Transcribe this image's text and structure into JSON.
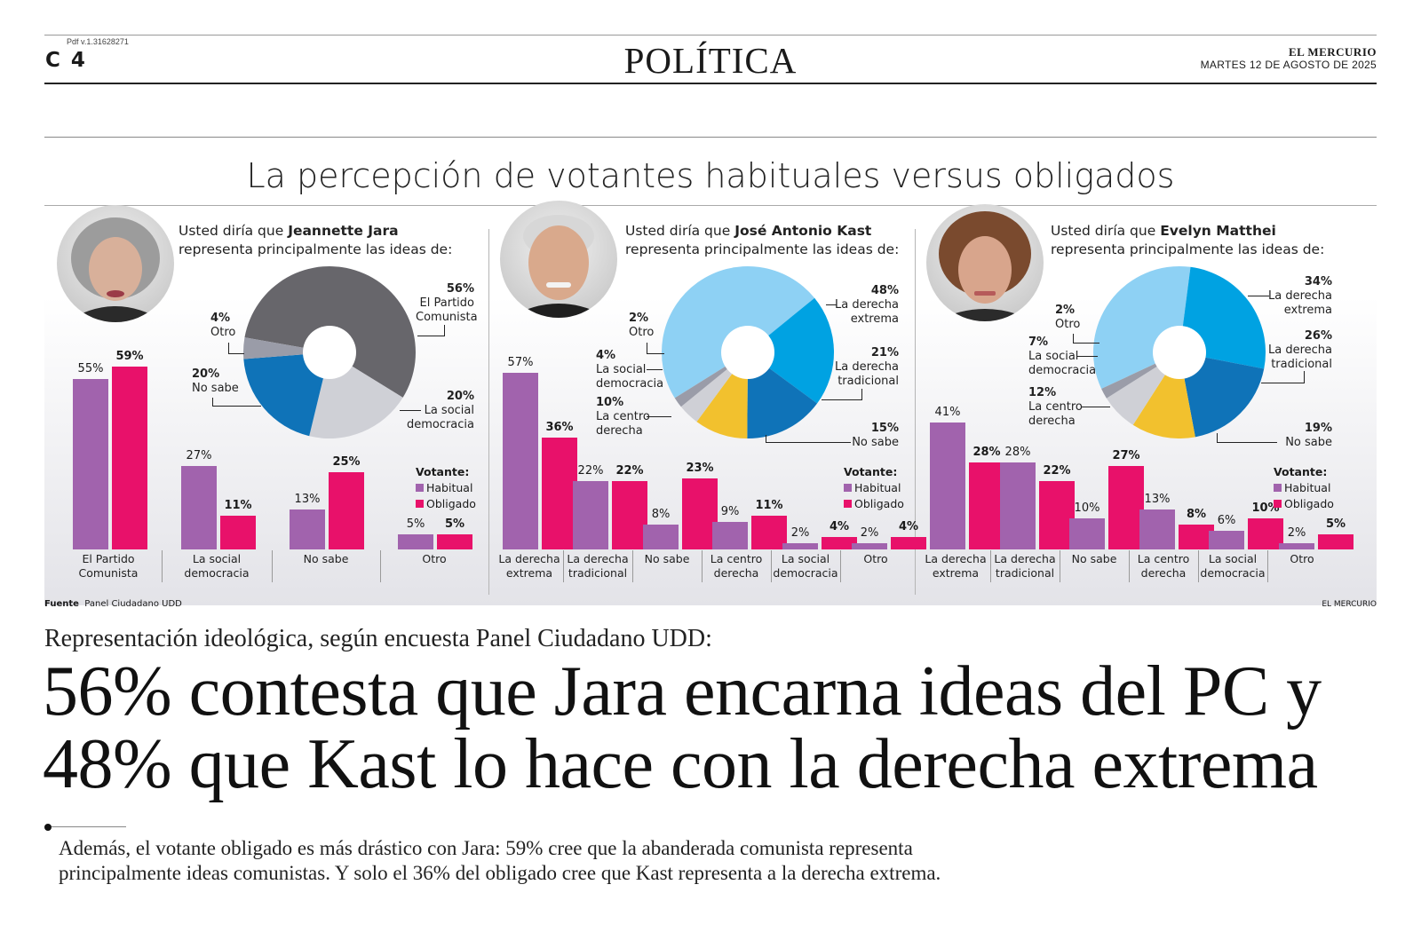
{
  "header": {
    "pdf_version": "Pdf v.1.31628271",
    "page": "C 4",
    "section": "POLÍTICA",
    "paper": "EL MERCURIO",
    "date": "MARTES 12 DE AGOSTO DE 2025"
  },
  "graphic": {
    "title": "La percepción de votantes habituales versus obligados",
    "source_label": "Fuente",
    "source": "Panel Ciudadano UDD",
    "credit": "EL MERCURIO",
    "legend": {
      "title": "Votante:",
      "habitual": "Habitual",
      "obligado": "Obligado"
    },
    "colors": {
      "habitual": "#a163ad",
      "obligado": "#e8116a"
    }
  },
  "panels": [
    {
      "question_prefix": "Usted diría que",
      "candidate": "Jeannette Jara",
      "question_suffix": "representa principalmente las ideas de:",
      "donut": [
        {
          "label": "El Partido Comunista",
          "value": "56%",
          "color": "#67666b"
        },
        {
          "label": "La social democracia",
          "value": "20%",
          "color": "#cfd0d6"
        },
        {
          "label": "No sabe",
          "value": "20%",
          "color": "#0f73b8"
        },
        {
          "label": "Otro",
          "value": "4%",
          "color": "#9a9ca8"
        }
      ],
      "bars": [
        {
          "label_1": "El Partido",
          "label_2": "Comunista",
          "habitual": 55,
          "obligado": 59,
          "habitual_text": "55%",
          "obligado_text": "59%"
        },
        {
          "label_1": "La social",
          "label_2": "democracia",
          "habitual": 27,
          "obligado": 11,
          "habitual_text": "27%",
          "obligado_text": "11%"
        },
        {
          "label_1": "No sabe",
          "label_2": "",
          "habitual": 13,
          "obligado": 25,
          "habitual_text": "13%",
          "obligado_text": "25%"
        },
        {
          "label_1": "Otro",
          "label_2": "",
          "habitual": 5,
          "obligado": 5,
          "habitual_text": "5%",
          "obligado_text": "5%"
        }
      ]
    },
    {
      "question_prefix": "Usted diría que",
      "candidate": "José Antonio Kast",
      "question_suffix": "representa principalmente las ideas de:",
      "donut": [
        {
          "label": "La derecha extrema",
          "value": "48%",
          "color": "#8ed1f4"
        },
        {
          "label": "La derecha tradicional",
          "value": "21%",
          "color": "#00a2e2"
        },
        {
          "label": "No sabe",
          "value": "15%",
          "color": "#0f73b8"
        },
        {
          "label": "La centro derecha",
          "value": "10%",
          "color": "#f2c12e"
        },
        {
          "label": "La social democracia",
          "value": "4%",
          "color": "#cfd0d6"
        },
        {
          "label": "Otro",
          "value": "2%",
          "color": "#9a9ca8"
        }
      ],
      "bars": [
        {
          "label_1": "La derecha",
          "label_2": "extrema",
          "habitual": 57,
          "obligado": 36,
          "habitual_text": "57%",
          "obligado_text": "36%"
        },
        {
          "label_1": "La derecha",
          "label_2": "tradicional",
          "habitual": 22,
          "obligado": 22,
          "habitual_text": "22%",
          "obligado_text": "22%"
        },
        {
          "label_1": "No sabe",
          "label_2": "",
          "habitual": 8,
          "obligado": 23,
          "habitual_text": "8%",
          "obligado_text": "23%"
        },
        {
          "label_1": "La centro",
          "label_2": "derecha",
          "habitual": 9,
          "obligado": 11,
          "habitual_text": "9%",
          "obligado_text": "11%"
        },
        {
          "label_1": "La social",
          "label_2": "democracia",
          "habitual": 2,
          "obligado": 4,
          "habitual_text": "2%",
          "obligado_text": "4%"
        },
        {
          "label_1": "Otro",
          "label_2": "",
          "habitual": 2,
          "obligado": 4,
          "habitual_text": "2%",
          "obligado_text": "4%"
        }
      ]
    },
    {
      "question_prefix": "Usted diría que",
      "candidate": "Evelyn Matthei",
      "question_suffix": "representa principalmente las ideas de:",
      "donut": [
        {
          "label": "La derecha extrema",
          "value": "34%",
          "color": "#8ed1f4"
        },
        {
          "label": "La derecha tradicional",
          "value": "26%",
          "color": "#00a2e2"
        },
        {
          "label": "No sabe",
          "value": "19%",
          "color": "#0f73b8"
        },
        {
          "label": "La centro derecha",
          "value": "12%",
          "color": "#f2c12e"
        },
        {
          "label": "La social democracia",
          "value": "7%",
          "color": "#cfd0d6"
        },
        {
          "label": "Otro",
          "value": "2%",
          "color": "#9a9ca8"
        }
      ],
      "bars": [
        {
          "label_1": "La derecha",
          "label_2": "extrema",
          "habitual": 41,
          "obligado": 28,
          "habitual_text": "41%",
          "obligado_text": "28%"
        },
        {
          "label_1": "La derecha",
          "label_2": "tradicional",
          "habitual": 28,
          "obligado": 22,
          "habitual_text": "28%",
          "obligado_text": "22%"
        },
        {
          "label_1": "No sabe",
          "label_2": "",
          "habitual": 10,
          "obligado": 27,
          "habitual_text": "10%",
          "obligado_text": "27%"
        },
        {
          "label_1": "La centro",
          "label_2": "derecha",
          "habitual": 13,
          "obligado": 8,
          "habitual_text": "13%",
          "obligado_text": "8%"
        },
        {
          "label_1": "La social",
          "label_2": "democracia",
          "habitual": 6,
          "obligado": 10,
          "habitual_text": "6%",
          "obligado_text": "10%"
        },
        {
          "label_1": "Otro",
          "label_2": "",
          "habitual": 2,
          "obligado": 5,
          "habitual_text": "2%",
          "obligado_text": "5%"
        }
      ]
    }
  ],
  "article": {
    "kicker": "Representación ideológica, según encuesta Panel Ciudadano UDD:",
    "headline_line1": "56% contesta que Jara encarna ideas del PC y",
    "headline_line2": "48% que Kast lo hace con la derecha extrema",
    "lede_line1": "Además, el votante obligado es más drástico con Jara: 59% cree que la abanderada comunista representa",
    "lede_line2": "principalmente ideas comunistas. Y solo el 36% del obligado cree que Kast representa a la derecha extrema."
  }
}
